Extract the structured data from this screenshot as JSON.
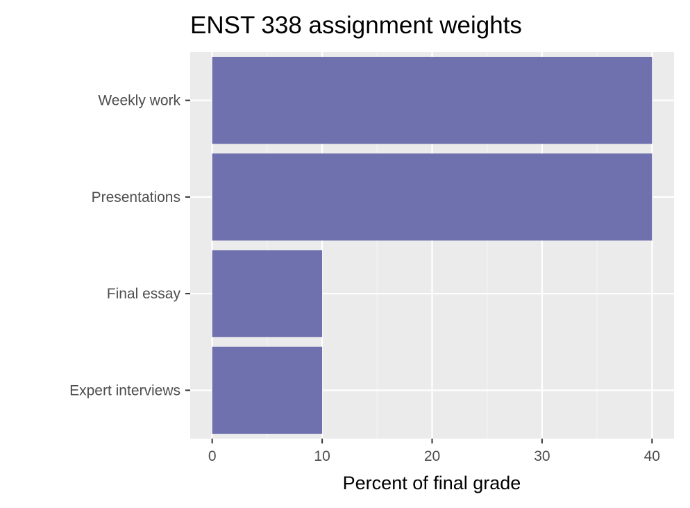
{
  "chart_data": {
    "type": "bar",
    "orientation": "horizontal",
    "title": "ENST 338 assignment weights",
    "xlabel": "Percent of final grade",
    "ylabel": "",
    "categories": [
      "Weekly work",
      "Presentations",
      "Final essay",
      "Expert interviews"
    ],
    "values": [
      40,
      40,
      10,
      10
    ],
    "xlim": [
      -2,
      42
    ],
    "xticks": [
      0,
      10,
      20,
      30,
      40
    ],
    "xtick_labels": [
      "0",
      "10",
      "20",
      "30",
      "40"
    ],
    "grid": true,
    "legend": "none",
    "colors": {
      "bar": "#6f70ae",
      "panel_background": "#ebebeb",
      "grid_major": "#ffffff",
      "tick_text": "#4d4d4d",
      "title_text": "#000000"
    }
  }
}
